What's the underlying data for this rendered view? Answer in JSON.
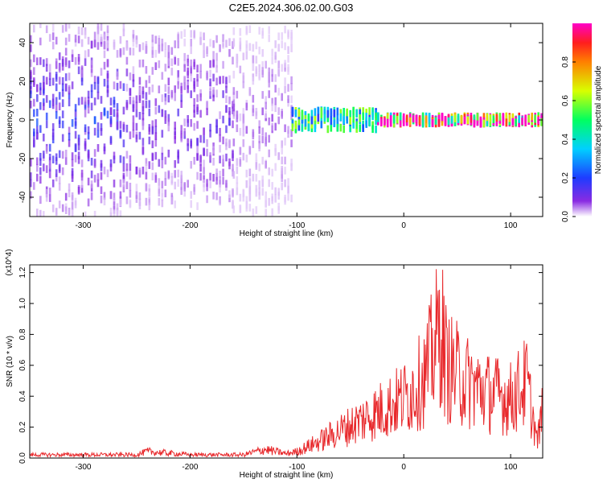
{
  "figure_title": "C2E5.2024.306.02.00.G03",
  "chart_data": [
    {
      "type": "heatmap",
      "xlabel": "Height of straight line (km)",
      "ylabel": "Frequency (Hz)",
      "xlim": [
        -350,
        130
      ],
      "ylim": [
        -50,
        50
      ],
      "x_ticks": [
        -300,
        -200,
        -100,
        0,
        100
      ],
      "y_ticks": [
        -40,
        -20,
        0,
        20,
        40
      ],
      "colorbar": {
        "label": "Normalized spectral amplitude",
        "range": [
          0.0,
          1.0
        ],
        "ticks": [
          0.0,
          0.2,
          0.4,
          0.6,
          0.8
        ],
        "tick_labels": [
          "0.0",
          "0.2",
          "0.4",
          "0.6",
          "0.8"
        ]
      },
      "description_bands": [
        {
          "x_from": -350,
          "x_to": -260,
          "freq_spread": 50,
          "amplitude": 0.15
        },
        {
          "x_from": -260,
          "x_to": -160,
          "freq_spread": 45,
          "amplitude": 0.1
        },
        {
          "x_from": -160,
          "x_to": -105,
          "freq_spread": 48,
          "amplitude": 0.05
        },
        {
          "x_from": -105,
          "x_to": -25,
          "freq_spread": 5,
          "amplitude": 0.4
        },
        {
          "x_from": -25,
          "x_to": 130,
          "freq_spread": 2,
          "amplitude": 0.85
        }
      ]
    },
    {
      "type": "line",
      "xlabel": "Height of straight line (km)",
      "ylabel": "SNR (10 * v/v)",
      "y_multiplier": "(x10^4)",
      "xlim": [
        -350,
        130
      ],
      "ylim": [
        0,
        1.25
      ],
      "x_ticks": [
        -300,
        -200,
        -100,
        0,
        100
      ],
      "y_ticks": [
        0.0,
        0.2,
        0.4,
        0.6,
        0.8,
        1.0,
        1.2
      ],
      "y_tick_labels": [
        "0.0",
        "0.2",
        "0.4",
        "0.6",
        "0.8",
        "1.0",
        "1.2"
      ],
      "series": [
        {
          "color": "#e8282b",
          "x": [
            -350,
            -300,
            -250,
            -240,
            -200,
            -150,
            -130,
            -110,
            -100,
            -80,
            -60,
            -40,
            -20,
            0,
            20,
            35,
            40,
            60,
            80,
            100,
            115,
            125,
            130
          ],
          "y": [
            0.03,
            0.03,
            0.03,
            0.06,
            0.03,
            0.03,
            0.08,
            0.04,
            0.06,
            0.15,
            0.25,
            0.35,
            0.45,
            0.55,
            0.75,
            1.22,
            0.85,
            0.7,
            0.6,
            0.55,
            0.7,
            0.15,
            0.45
          ]
        }
      ]
    }
  ]
}
